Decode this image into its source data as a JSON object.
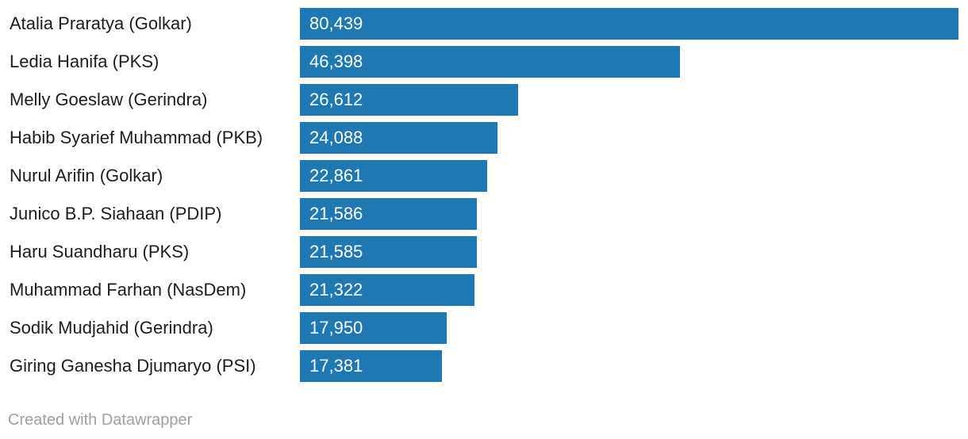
{
  "chart_data": {
    "type": "bar",
    "orientation": "horizontal",
    "categories": [
      "Atalia Praratya (Golkar)",
      "Ledia Hanifa (PKS)",
      "Melly Goeslaw (Gerindra)",
      "Habib Syarief Muhammad (PKB)",
      "Nurul Arifin (Golkar)",
      "Junico B.P. Siahaan (PDIP)",
      "Haru Suandharu (PKS)",
      "Muhammad Farhan (NasDem)",
      "Sodik Mudjahid (Gerindra)",
      "Giring Ganesha Djumaryo (PSI)"
    ],
    "values": [
      80439,
      46398,
      26612,
      24088,
      22861,
      21586,
      21585,
      21322,
      17950,
      17381
    ],
    "value_labels": [
      "80,439",
      "46,398",
      "26,612",
      "24,088",
      "22,861",
      "21,586",
      "21,585",
      "21,322",
      "17,950",
      "17,381"
    ],
    "xlim": [
      0,
      80439
    ],
    "bar_color": "#1f77b4",
    "grid": false
  },
  "footer": {
    "credit": "Created with Datawrapper"
  }
}
